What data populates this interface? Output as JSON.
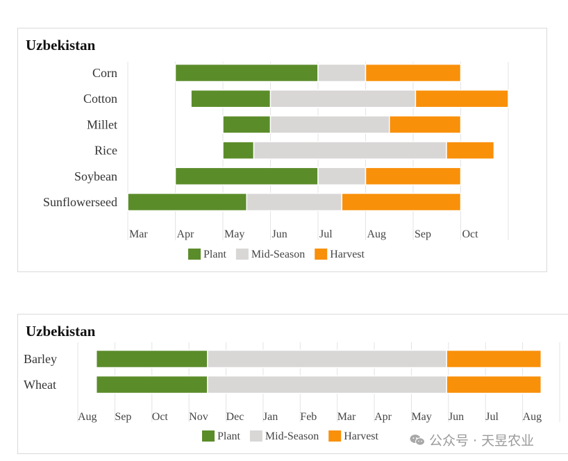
{
  "colors": {
    "plant": "#5b8c2a",
    "mid": "#d9d6d6",
    "harvest": "#f9900a",
    "grid": "#e3e3e3"
  },
  "watermark": {
    "text": "公众号 · 天昱农业",
    "icon": "wechat-icon"
  },
  "chart_data": [
    {
      "type": "bar",
      "title": "Uzbekistan",
      "ticks": [
        "Mar",
        "Apr",
        "May",
        "Jun",
        "Jul",
        "Aug",
        "Sep",
        "Oct"
      ],
      "categories": [
        "Corn",
        "Cotton",
        "Millet",
        "Rice",
        "Soybean",
        "Sunflowerseed"
      ],
      "series": [
        {
          "name": "Plant",
          "color_key": "plant",
          "spans": [
            [
              1,
              4
            ],
            [
              1.33,
              3
            ],
            [
              2,
              3
            ],
            [
              2,
              2.65
            ],
            [
              1,
              4
            ],
            [
              0,
              2.5
            ]
          ]
        },
        {
          "name": "Mid-Season",
          "color_key": "mid",
          "spans": [
            [
              4,
              5
            ],
            [
              3,
              6.05
            ],
            [
              3,
              5.5
            ],
            [
              2.65,
              6.7
            ],
            [
              4,
              5
            ],
            [
              2.5,
              4.5
            ]
          ]
        },
        {
          "name": "Harvest",
          "color_key": "harvest",
          "spans": [
            [
              5,
              7
            ],
            [
              6.05,
              8
            ],
            [
              5.5,
              7
            ],
            [
              6.7,
              7.7
            ],
            [
              5,
              7
            ],
            [
              4.5,
              7
            ]
          ]
        }
      ],
      "xlim": [
        0,
        8
      ],
      "grid": true,
      "legend": "bottom"
    },
    {
      "type": "bar",
      "title": "Uzbekistan",
      "ticks": [
        "Aug",
        "Sep",
        "Oct",
        "Nov",
        "Dec",
        "Jan",
        "Feb",
        "Mar",
        "Apr",
        "May",
        "Jun",
        "Jul",
        "Aug"
      ],
      "categories": [
        "Barley",
        "Wheat"
      ],
      "series": [
        {
          "name": "Plant",
          "color_key": "plant",
          "spans": [
            [
              0.5,
              3.5
            ],
            [
              0.5,
              3.5
            ]
          ]
        },
        {
          "name": "Mid-Season",
          "color_key": "mid",
          "spans": [
            [
              3.5,
              9.95
            ],
            [
              3.5,
              9.95
            ]
          ]
        },
        {
          "name": "Harvest",
          "color_key": "harvest",
          "spans": [
            [
              9.95,
              12.5
            ],
            [
              9.95,
              12.5
            ]
          ]
        }
      ],
      "xlim": [
        0,
        13
      ],
      "grid": true,
      "legend": "bottom"
    }
  ]
}
